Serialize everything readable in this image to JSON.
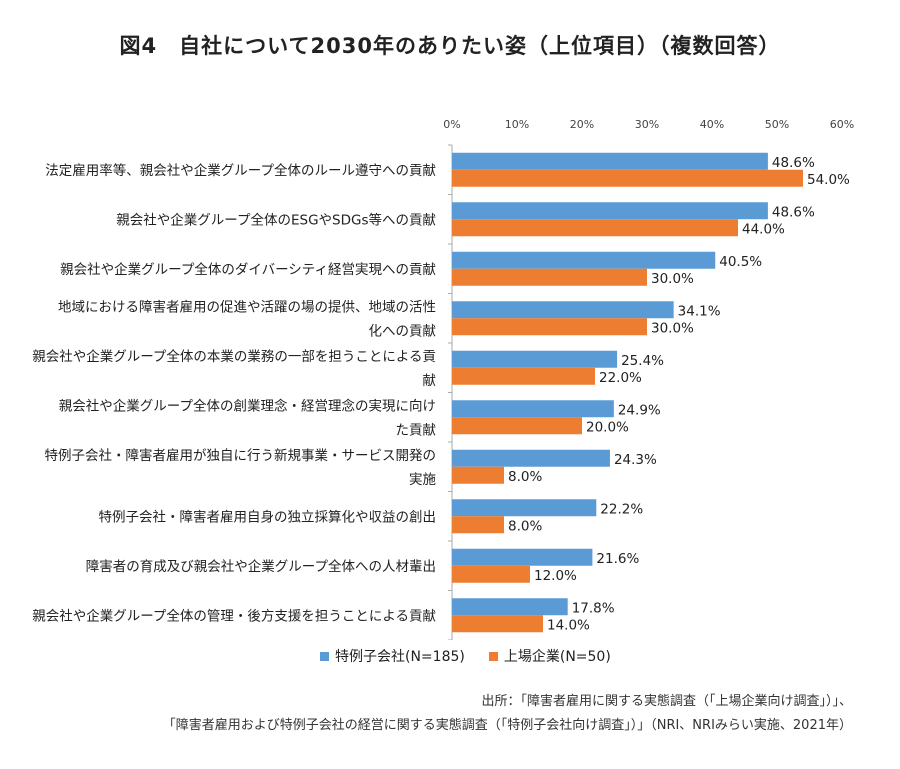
{
  "title": "図4　自社について2030年のありたい姿（上位項目）（複数回答）",
  "colors": {
    "series1": "#5b9bd5",
    "series2": "#ed7d31",
    "axis": "#aaaaaa"
  },
  "chart_data": {
    "type": "bar",
    "orientation": "horizontal",
    "xlim": [
      0,
      60
    ],
    "x_ticks": [
      "0%",
      "10%",
      "20%",
      "30%",
      "40%",
      "50%",
      "60%"
    ],
    "categories": [
      [
        "法定雇用率等、親会社や企業グループ全体のルール遵守への貢献"
      ],
      [
        "親会社や企業グループ全体のESGやSDGs等への貢献"
      ],
      [
        "親会社や企業グループ全体のダイバーシティ経営実現への貢献"
      ],
      [
        "地域における障害者雇用の促進や活躍の場の提供、地域の活性",
        "化への貢献"
      ],
      [
        "親会社や企業グループ全体の本業の業務の一部を担うことによる貢",
        "献"
      ],
      [
        "親会社や企業グループ全体の創業理念・経営理念の実現に向け",
        "た貢献"
      ],
      [
        "特例子会社・障害者雇用が独自に行う新規事業・サービス開発の",
        "実施"
      ],
      [
        "特例子会社・障害者雇用自身の独立採算化や収益の創出"
      ],
      [
        "障害者の育成及び親会社や企業グループ全体への人材輩出"
      ],
      [
        "親会社や企業グループ全体の管理・後方支援を担うことによる貢献"
      ]
    ],
    "series": [
      {
        "name": "特例子会社(N=185)",
        "values": [
          48.6,
          48.6,
          40.5,
          34.1,
          25.4,
          24.9,
          24.3,
          22.2,
          21.6,
          17.8
        ],
        "labels": [
          "48.6%",
          "48.6%",
          "40.5%",
          "34.1%",
          "25.4%",
          "24.9%",
          "24.3%",
          "22.2%",
          "21.6%",
          "17.8%"
        ]
      },
      {
        "name": "上場企業(N=50)",
        "values": [
          54.0,
          44.0,
          30.0,
          30.0,
          22.0,
          20.0,
          8.0,
          8.0,
          12.0,
          14.0
        ],
        "labels": [
          "54.0%",
          "44.0%",
          "30.0%",
          "30.0%",
          "22.0%",
          "20.0%",
          "8.0%",
          "8.0%",
          "12.0%",
          "14.0%"
        ]
      }
    ],
    "legend_position": "bottom"
  },
  "source": {
    "line1": "出所：「障害者雇用に関する実態調査（「上場企業向け調査」）」、",
    "line2": "「障害者雇用および特例子会社の経営に関する実態調査（「特例子会社向け調査」）」（NRI、NRIみらい実施、2021年）"
  }
}
